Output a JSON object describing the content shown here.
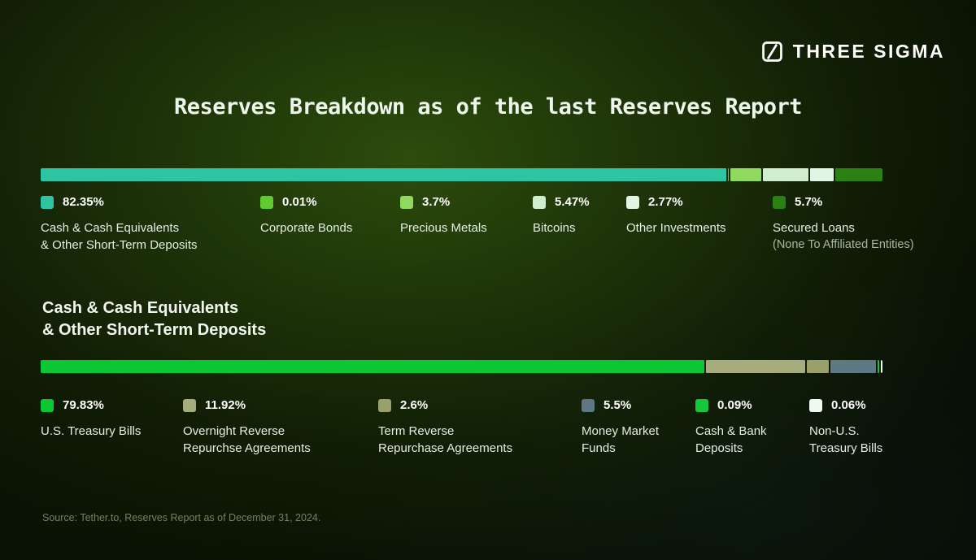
{
  "brand": {
    "name": "THREE SIGMA",
    "logo_icon": "three-sigma-square-slash-icon"
  },
  "title": "Reserves Breakdown as of the last Reserves Report",
  "section2_heading": "Cash & Cash Equivalents\n& Other Short-Term Deposits",
  "source": "Source: Tether.to, Reserves Report as of December 31, 2024.",
  "colors": {
    "background_dark": "#070c03",
    "background_glow": "#32560e",
    "text_primary": "#ffffff",
    "text_secondary": "#e6ede2",
    "text_muted": "#73835f"
  },
  "chart_data": [
    {
      "type": "bar",
      "subtype": "horizontal-stacked",
      "title": "Reserves Breakdown as of the last Reserves Report",
      "unit": "%",
      "total": 100,
      "legend_position": "below",
      "segments": [
        {
          "label": "Cash & Cash Equivalents\n& Other Short-Term Deposits",
          "value": 82.35,
          "display": "82.35%",
          "color": "#2cc4a2"
        },
        {
          "label": "Corporate Bonds",
          "value": 0.01,
          "display": "0.01%",
          "color": "#5ecb2e"
        },
        {
          "label": "Precious Metals",
          "value": 3.7,
          "display": "3.7%",
          "color": "#8ed95e"
        },
        {
          "label": "Bitcoins",
          "value": 5.47,
          "display": "5.47%",
          "color": "#cfeed0"
        },
        {
          "label": "Other Investments",
          "value": 2.77,
          "display": "2.77%",
          "color": "#e2f4e3"
        },
        {
          "label": "Secured Loans",
          "sublabel": "(None To Affiliated Entities)",
          "value": 5.7,
          "display": "5.7%",
          "color": "#2a8010"
        }
      ]
    },
    {
      "type": "bar",
      "subtype": "horizontal-stacked",
      "title": "Cash & Cash Equivalents & Other Short-Term Deposits",
      "unit": "%",
      "total": 100,
      "legend_position": "below",
      "segments": [
        {
          "label": "U.S. Treasury Bills",
          "value": 79.83,
          "display": "79.83%",
          "color": "#0cc734"
        },
        {
          "label": "Overnight Reverse\nRepurchse Agreements",
          "value": 11.92,
          "display": "11.92%",
          "color": "#a6ac7c"
        },
        {
          "label": "Term Reverse\nRepurchase Agreements",
          "value": 2.6,
          "display": "2.6%",
          "color": "#99a069"
        },
        {
          "label": "Money Market\nFunds",
          "value": 5.5,
          "display": "5.5%",
          "color": "#5e7884"
        },
        {
          "label": "Cash & Bank\nDeposits",
          "value": 0.09,
          "display": "0.09%",
          "color": "#16c73a"
        },
        {
          "label": "Non-U.S.\nTreasury Bills",
          "value": 0.06,
          "display": "0.06%",
          "color": "#eefaf0"
        }
      ]
    }
  ]
}
